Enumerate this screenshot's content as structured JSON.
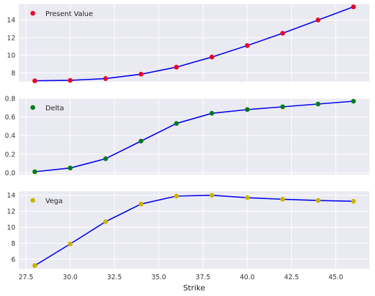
{
  "chart_data": {
    "type": "scatter",
    "xlabel": "Strike",
    "x": [
      28,
      30,
      32,
      34,
      36,
      38,
      40,
      42,
      44,
      46
    ],
    "xlim": [
      27.1,
      46.9
    ],
    "xticks": [
      27.5,
      30.0,
      32.5,
      35.0,
      37.5,
      40.0,
      42.5,
      45.0
    ],
    "xtick_labels": [
      "27.5",
      "30.0",
      "32.5",
      "35.0",
      "37.5",
      "40.0",
      "42.5",
      "45.0"
    ],
    "line_color": "#0000ee",
    "background": "#eaeaf2",
    "grid": true,
    "legend_position": "top-left",
    "panels": [
      {
        "name": "Present Value",
        "marker_color": "#e8002a",
        "values": [
          7.1,
          7.15,
          7.35,
          7.85,
          8.65,
          9.8,
          11.1,
          12.5,
          14.0,
          15.5
        ],
        "ylim": [
          7.0,
          15.8
        ],
        "yticks": [
          8,
          10,
          12,
          14
        ],
        "ytick_labels": [
          "8",
          "10",
          "12",
          "14"
        ]
      },
      {
        "name": "Delta",
        "marker_color": "#007a1f",
        "values": [
          0.01,
          0.05,
          0.15,
          0.34,
          0.53,
          0.64,
          0.68,
          0.71,
          0.74,
          0.77
        ],
        "ylim": [
          -0.02,
          0.8
        ],
        "yticks": [
          0.0,
          0.2,
          0.4,
          0.6,
          0.8
        ],
        "ytick_labels": [
          "0.0",
          "0.2",
          "0.4",
          "0.6",
          "0.8"
        ]
      },
      {
        "name": "Vega",
        "marker_color": "#c8b400",
        "values": [
          5.2,
          7.9,
          10.7,
          12.9,
          13.9,
          14.0,
          13.7,
          13.5,
          13.35,
          13.25
        ],
        "ylim": [
          4.8,
          14.5
        ],
        "yticks": [
          6,
          8,
          10,
          12,
          14
        ],
        "ytick_labels": [
          "6",
          "8",
          "10",
          "12",
          "14"
        ]
      }
    ]
  }
}
